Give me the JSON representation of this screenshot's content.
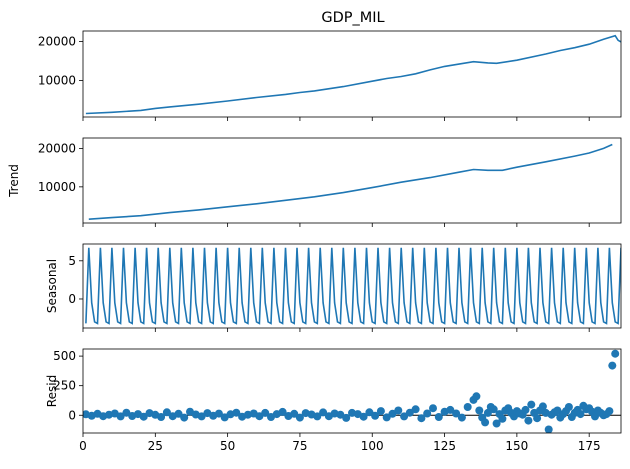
{
  "figure": {
    "title": "GDP_MIL",
    "line_color": "#1f77b4",
    "x_ticks": [
      "0",
      "25",
      "50",
      "75",
      "100",
      "125",
      "150",
      "175"
    ]
  },
  "chart_data": [
    {
      "type": "line",
      "panel": "observed",
      "title": "GDP_MIL",
      "ylabel": "",
      "xlim": [
        0,
        186
      ],
      "ylim": [
        600,
        22700
      ],
      "y_ticks": [
        10000,
        20000
      ],
      "y_tick_labels": [
        "10000",
        "20000"
      ],
      "x_ticks_visible": false,
      "x": [
        1,
        10,
        20,
        25,
        30,
        40,
        50,
        60,
        70,
        75,
        80,
        90,
        100,
        105,
        110,
        115,
        120,
        125,
        130,
        135,
        140,
        143,
        150,
        160,
        165,
        170,
        175,
        180,
        184,
        185,
        186
      ],
      "values": [
        1500,
        1800,
        2300,
        2800,
        3200,
        3900,
        4700,
        5600,
        6400,
        6900,
        7300,
        8400,
        9800,
        10500,
        11000,
        11700,
        12700,
        13600,
        14200,
        14800,
        14500,
        14400,
        15200,
        16800,
        17700,
        18400,
        19300,
        20600,
        21500,
        20300,
        19900
      ]
    },
    {
      "type": "line",
      "panel": "trend",
      "ylabel": "Trend",
      "xlim": [
        0,
        186
      ],
      "ylim": [
        600,
        22700
      ],
      "y_ticks": [
        10000,
        20000
      ],
      "y_tick_labels": [
        "10000",
        "20000"
      ],
      "x_ticks_visible": false,
      "x": [
        2,
        10,
        20,
        30,
        40,
        50,
        60,
        70,
        80,
        90,
        100,
        110,
        120,
        130,
        135,
        140,
        145,
        150,
        160,
        170,
        175,
        180,
        183
      ],
      "values": [
        1600,
        2000,
        2500,
        3300,
        4000,
        4800,
        5600,
        6500,
        7400,
        8500,
        9800,
        11200,
        12400,
        13800,
        14500,
        14300,
        14300,
        15100,
        16500,
        18000,
        18800,
        20000,
        21000
      ]
    },
    {
      "type": "line",
      "panel": "seasonal",
      "ylabel": "Seasonal",
      "xlim": [
        0,
        186
      ],
      "ylim": [
        -3.8,
        7.2
      ],
      "y_ticks": [
        0,
        5
      ],
      "y_tick_labels": [
        "0",
        "5"
      ],
      "x_ticks_visible": false,
      "period": 4,
      "cycle_values": [
        -3.2,
        6.7,
        -0.5,
        -3.0
      ]
    },
    {
      "type": "scatter",
      "panel": "resid",
      "ylabel": "Resid",
      "xlim": [
        0,
        186
      ],
      "ylim": [
        -150,
        560
      ],
      "y_ticks": [
        0,
        250,
        500
      ],
      "y_tick_labels": [
        "0",
        "250",
        "500"
      ],
      "x_ticks_visible": true,
      "baseline": 0,
      "x": [
        1,
        3,
        5,
        7,
        9,
        11,
        13,
        15,
        17,
        19,
        21,
        23,
        25,
        27,
        29,
        31,
        33,
        35,
        37,
        39,
        41,
        43,
        45,
        47,
        49,
        51,
        53,
        55,
        57,
        59,
        61,
        63,
        65,
        67,
        69,
        71,
        73,
        75,
        77,
        79,
        81,
        83,
        85,
        87,
        89,
        91,
        93,
        95,
        97,
        99,
        101,
        103,
        105,
        107,
        109,
        111,
        113,
        115,
        117,
        119,
        121,
        123,
        125,
        127,
        129,
        131,
        133,
        135,
        136,
        137,
        138,
        139,
        140,
        141,
        142,
        143,
        144,
        145,
        146,
        147,
        148,
        149,
        150,
        151,
        152,
        153,
        154,
        155,
        156,
        157,
        158,
        159,
        160,
        161,
        162,
        163,
        164,
        165,
        166,
        167,
        168,
        169,
        170,
        171,
        172,
        173,
        174,
        175,
        176,
        177,
        178,
        179,
        180,
        181,
        182,
        183,
        184
      ],
      "values": [
        8,
        -5,
        12,
        -8,
        5,
        15,
        -10,
        22,
        -6,
        10,
        -12,
        18,
        4,
        -15,
        25,
        -8,
        12,
        -20,
        30,
        6,
        -10,
        18,
        -5,
        14,
        -18,
        8,
        22,
        -12,
        5,
        15,
        -8,
        20,
        -15,
        10,
        28,
        -6,
        12,
        -20,
        18,
        6,
        -10,
        24,
        -8,
        15,
        5,
        -22,
        20,
        10,
        -12,
        25,
        -5,
        35,
        -18,
        12,
        40,
        -10,
        22,
        50,
        -25,
        15,
        60,
        -15,
        30,
        45,
        15,
        -20,
        70,
        130,
        160,
        40,
        -20,
        -60,
        20,
        70,
        50,
        -70,
        10,
        -30,
        40,
        60,
        20,
        -10,
        35,
        15,
        5,
        45,
        -45,
        90,
        20,
        -25,
        40,
        75,
        20,
        -120,
        5,
        25,
        40,
        -20,
        10,
        35,
        70,
        -15,
        20,
        45,
        10,
        80,
        50,
        60,
        30,
        -10,
        40,
        20,
        0,
        10,
        35,
        420,
        520
      ]
    }
  ]
}
